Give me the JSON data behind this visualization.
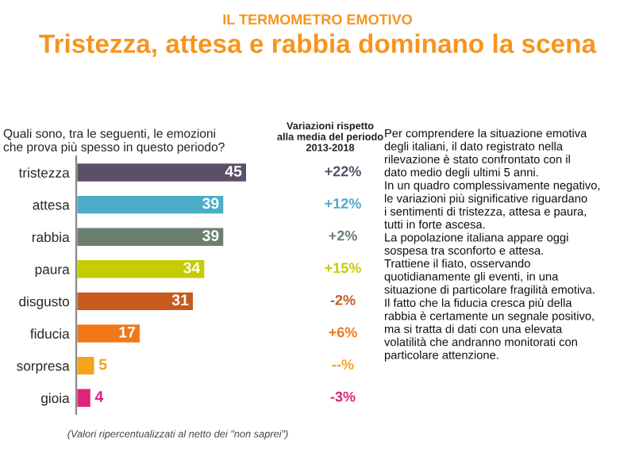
{
  "chart_data": {
    "type": "bar",
    "orientation": "horizontal",
    "title": "Tristezza, attesa e rabbia dominano la scena",
    "subtitle": "IL TERMOMETRO EMOTIVO",
    "categories": [
      "tristezza",
      "attesa",
      "rabbia",
      "paura",
      "disgusto",
      "fiducia",
      "sorpresa",
      "gioia"
    ],
    "values": [
      45,
      39,
      39,
      34,
      31,
      17,
      5,
      4
    ],
    "colors": [
      "#5b5068",
      "#4badc8",
      "#6b7f6e",
      "#c5cc00",
      "#c85a1e",
      "#f07818",
      "#f7a21b",
      "#e0237a"
    ],
    "data_labels": true,
    "annotations": [
      "Quali sono, tra le seguenti, le emozioni\nche prova più spesso in questo periodo?",
      "Variazioni rispetto\nalla media del periodo\n2013-2018",
      "(Valori ripercentualizzati al netto dei \"non saprei\")",
      "Per comprendere la situazione emotiva\ndegli italiani, il dato registrato nella\nrilevazione è stato confrontato con il\ndato medio degli ultimi 5 anni.\nIn un quadro complessivamente negativo,\nle variazioni più significative riguardano\ni sentimenti di tristezza, attesa e paura,\ntutti in forte ascesa.\nLa popolazione italiana appare oggi\nsospesa tra sconforto e attesa.\nTrattiene il fiato, osservando\nquotidianamente gli eventi, in una\nsituazione di particolare fragilità emotiva.\nIl fatto che la fiducia cresca più della\nrabbia è certamente un segnale positivo,\nma si tratta di dati con una elevata\nvolatilità che andranno monitorati con\nparticolare attenzione.",
      "+22%",
      "+12%",
      "+2%",
      "+15%",
      "-2%",
      "+6%",
      "--%",
      "-3%"
    ]
  }
}
